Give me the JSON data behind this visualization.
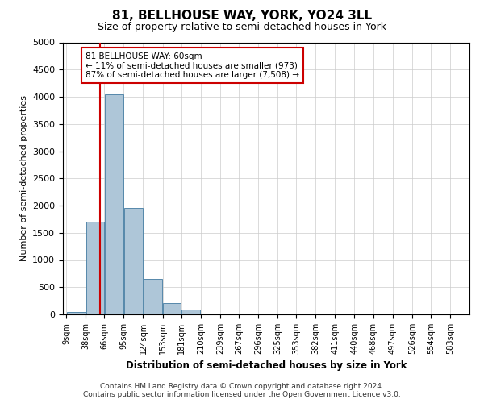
{
  "title": "81, BELLHOUSE WAY, YORK, YO24 3LL",
  "subtitle": "Size of property relative to semi-detached houses in York",
  "xlabel": "Distribution of semi-detached houses by size in York",
  "ylabel": "Number of semi-detached properties",
  "footer1": "Contains HM Land Registry data © Crown copyright and database right 2024.",
  "footer2": "Contains public sector information licensed under the Open Government Licence v3.0.",
  "annotation_title": "81 BELLHOUSE WAY: 60sqm",
  "annotation_line1": "← 11% of semi-detached houses are smaller (973)",
  "annotation_line2": "87% of semi-detached houses are larger (7,508) →",
  "property_size": 60,
  "bins": [
    9,
    38,
    66,
    95,
    124,
    153,
    181,
    210,
    239,
    267,
    296,
    325,
    353,
    382,
    411,
    440,
    468,
    497,
    526,
    554,
    583
  ],
  "bin_labels": [
    "9sqm",
    "38sqm",
    "66sqm",
    "95sqm",
    "124sqm",
    "153sqm",
    "181sqm",
    "210sqm",
    "239sqm",
    "267sqm",
    "296sqm",
    "325sqm",
    "353sqm",
    "382sqm",
    "411sqm",
    "440sqm",
    "468sqm",
    "497sqm",
    "526sqm",
    "554sqm",
    "583sqm"
  ],
  "counts": [
    50,
    1700,
    4050,
    1950,
    650,
    210,
    85,
    0,
    0,
    0,
    0,
    0,
    0,
    0,
    0,
    0,
    0,
    0,
    0,
    0
  ],
  "bar_color": "#aec6d8",
  "bar_edge_color": "#5588aa",
  "vline_color": "#cc0000",
  "vline_x": 60,
  "ylim": [
    0,
    5000
  ],
  "yticks": [
    0,
    500,
    1000,
    1500,
    2000,
    2500,
    3000,
    3500,
    4000,
    4500,
    5000
  ],
  "grid_color": "#cccccc",
  "background_color": "#ffffff",
  "annotation_box_color": "#ffffff",
  "annotation_box_edge": "#cc0000",
  "title_fontsize": 11,
  "subtitle_fontsize": 9
}
